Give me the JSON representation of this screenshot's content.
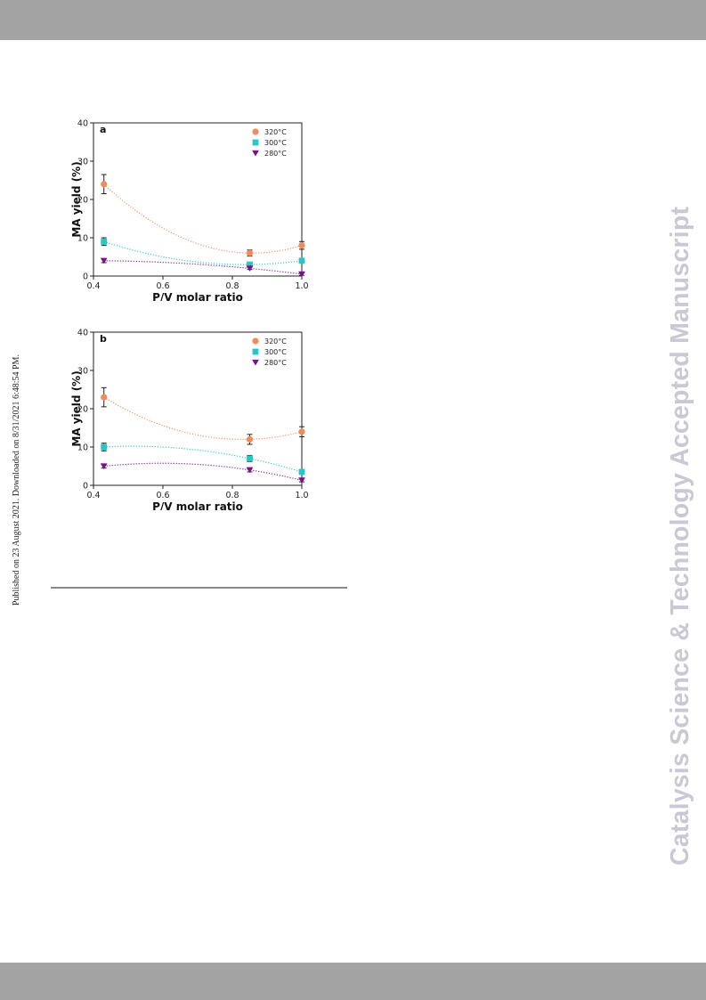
{
  "side_note": "Published on 23 August 2021. Downloaded on 8/31/2021 6:48:54 PM.",
  "watermark": "Catalysis Science & Technology Accepted Manuscript",
  "colors": {
    "320": "#f28a5a",
    "300": "#25c7c7",
    "280": "#7b0f8a",
    "bar": "#a3a3a3"
  },
  "chart_data": [
    {
      "type": "scatter",
      "panel_label": "a",
      "xlabel": "P/V molar ratio",
      "ylabel": "MA yield (%)",
      "xlim": [
        0.4,
        1.0
      ],
      "ylim": [
        0,
        40
      ],
      "xticks": [
        0.4,
        0.6,
        0.8,
        1.0
      ],
      "xtick_labels": [
        "0.4",
        "0.6",
        "0.8",
        "1.0"
      ],
      "yticks": [
        0,
        10,
        20,
        30,
        40
      ],
      "ytick_labels": [
        "0",
        "10",
        "20",
        "30",
        "40"
      ],
      "legend_position": "top-right",
      "x": [
        0.43,
        0.85,
        1.0
      ],
      "series": [
        {
          "name": "320°C",
          "marker": "circle",
          "color": "#f28a5a",
          "values": [
            24,
            6,
            8
          ],
          "errors": [
            2.5,
            0.8,
            1.0
          ],
          "fit": [
            0,
            0,
            0
          ]
        },
        {
          "name": "300°C",
          "marker": "square",
          "color": "#25c7c7",
          "values": [
            9,
            3,
            4
          ],
          "errors": [
            1.0,
            0.6,
            0.6
          ],
          "fit": [
            0,
            0,
            0
          ]
        },
        {
          "name": "280°C",
          "marker": "triangle-down",
          "color": "#7b0f8a",
          "values": [
            4,
            2,
            0.5
          ],
          "errors": [
            0.5,
            0.3,
            0.3
          ],
          "fit": [
            0,
            0,
            0
          ]
        }
      ]
    },
    {
      "type": "scatter",
      "panel_label": "b",
      "xlabel": "P/V molar ratio",
      "ylabel": "MA yield (%)",
      "xlim": [
        0.4,
        1.0
      ],
      "ylim": [
        0,
        40
      ],
      "xticks": [
        0.4,
        0.6,
        0.8,
        1.0
      ],
      "xtick_labels": [
        "0.4",
        "0.6",
        "0.8",
        "1.0"
      ],
      "yticks": [
        0,
        10,
        20,
        30,
        40
      ],
      "ytick_labels": [
        "0",
        "10",
        "20",
        "30",
        "40"
      ],
      "legend_position": "top-right",
      "x": [
        0.43,
        0.85,
        1.0
      ],
      "series": [
        {
          "name": "320°C",
          "marker": "circle",
          "color": "#f28a5a",
          "values": [
            23,
            12,
            14
          ],
          "errors": [
            2.5,
            1.3,
            1.3
          ],
          "fit": [
            0,
            0,
            0
          ]
        },
        {
          "name": "300°C",
          "marker": "square",
          "color": "#25c7c7",
          "values": [
            10,
            7,
            3.5
          ],
          "errors": [
            1.0,
            0.8,
            0.5
          ],
          "fit": [
            0,
            0,
            0
          ]
        },
        {
          "name": "280°C",
          "marker": "triangle-down",
          "color": "#7b0f8a",
          "values": [
            5,
            4,
            1.3
          ],
          "errors": [
            0.5,
            0.5,
            0.4
          ],
          "fit": [
            0,
            0,
            0
          ]
        }
      ]
    }
  ]
}
